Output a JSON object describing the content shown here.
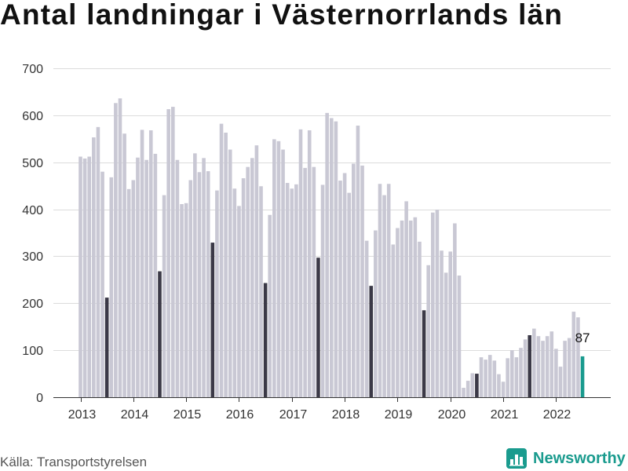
{
  "source": "Källa: Transportstyrelsen",
  "brand": {
    "name": "Newsworthy",
    "icon": "bar-chart-icon",
    "color": "#1a9b8e"
  },
  "chart_data": {
    "type": "bar",
    "title": "Antal landningar i Västernorrlands län",
    "ylim": [
      0,
      700
    ],
    "yticks": [
      0,
      100,
      200,
      300,
      400,
      500,
      600,
      700
    ],
    "xtick_labels": [
      "2013",
      "2014",
      "2015",
      "2016",
      "2017",
      "2018",
      "2019",
      "2020",
      "2021",
      "2022"
    ],
    "grid": true,
    "x": [
      "2013-01",
      "2013-02",
      "2013-03",
      "2013-04",
      "2013-05",
      "2013-06",
      "2013-07",
      "2013-08",
      "2013-09",
      "2013-10",
      "2013-11",
      "2013-12",
      "2014-01",
      "2014-02",
      "2014-03",
      "2014-04",
      "2014-05",
      "2014-06",
      "2014-07",
      "2014-08",
      "2014-09",
      "2014-10",
      "2014-11",
      "2014-12",
      "2015-01",
      "2015-02",
      "2015-03",
      "2015-04",
      "2015-05",
      "2015-06",
      "2015-07",
      "2015-08",
      "2015-09",
      "2015-10",
      "2015-11",
      "2015-12",
      "2016-01",
      "2016-02",
      "2016-03",
      "2016-04",
      "2016-05",
      "2016-06",
      "2016-07",
      "2016-08",
      "2016-09",
      "2016-10",
      "2016-11",
      "2016-12",
      "2017-01",
      "2017-02",
      "2017-03",
      "2017-04",
      "2017-05",
      "2017-06",
      "2017-07",
      "2017-08",
      "2017-09",
      "2017-10",
      "2017-11",
      "2017-12",
      "2018-01",
      "2018-02",
      "2018-03",
      "2018-04",
      "2018-05",
      "2018-06",
      "2018-07",
      "2018-08",
      "2018-09",
      "2018-10",
      "2018-11",
      "2018-12",
      "2019-01",
      "2019-02",
      "2019-03",
      "2019-04",
      "2019-05",
      "2019-06",
      "2019-07",
      "2019-08",
      "2019-09",
      "2019-10",
      "2019-11",
      "2019-12",
      "2020-01",
      "2020-02",
      "2020-03",
      "2020-04",
      "2020-05",
      "2020-06",
      "2020-07",
      "2020-08",
      "2020-09",
      "2020-10",
      "2020-11",
      "2020-12",
      "2021-01",
      "2021-02",
      "2021-03",
      "2021-04",
      "2021-05",
      "2021-06",
      "2021-07",
      "2021-08",
      "2021-09",
      "2021-10",
      "2021-11",
      "2021-12",
      "2022-01",
      "2022-02",
      "2022-03",
      "2022-04",
      "2022-05",
      "2022-06",
      "2022-07"
    ],
    "values": [
      512,
      508,
      512,
      553,
      575,
      480,
      212,
      468,
      626,
      636,
      561,
      443,
      462,
      510,
      569,
      505,
      568,
      518,
      268,
      430,
      613,
      618,
      505,
      411,
      413,
      462,
      519,
      479,
      509,
      481,
      329,
      440,
      582,
      563,
      527,
      444,
      407,
      466,
      490,
      509,
      536,
      449,
      243,
      388,
      549,
      545,
      527,
      456,
      444,
      453,
      570,
      488,
      568,
      490,
      297,
      452,
      605,
      594,
      587,
      461,
      477,
      435,
      497,
      578,
      493,
      333,
      237,
      355,
      454,
      430,
      454,
      325,
      360,
      376,
      417,
      376,
      383,
      331,
      185,
      281,
      393,
      399,
      312,
      265,
      310,
      370,
      259,
      20,
      35,
      51,
      50,
      85,
      80,
      90,
      78,
      49,
      33,
      83,
      100,
      85,
      105,
      123,
      132,
      146,
      130,
      120,
      130,
      140,
      103,
      65,
      120,
      126,
      182,
      170,
      87
    ],
    "highlight_x": [
      "2013-07",
      "2014-07",
      "2015-07",
      "2016-07",
      "2017-07",
      "2018-07",
      "2019-07",
      "2020-07",
      "2021-07"
    ],
    "latest_x": "2022-07",
    "data_labels": [
      {
        "x": "2022-07",
        "text": "87"
      }
    ],
    "colors": {
      "bar": "#c9c8d4",
      "highlight": "#3b3947",
      "latest": "#1a9b8e"
    }
  }
}
